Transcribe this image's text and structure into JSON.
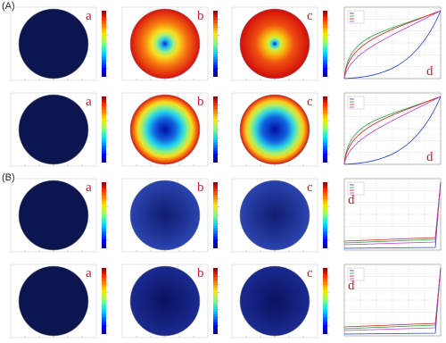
{
  "sections": [
    {
      "label": "(A)",
      "rows": [
        {
          "panels": [
            "a",
            "b",
            "c",
            "d"
          ]
        },
        {
          "panels": [
            "a",
            "b",
            "c",
            "d"
          ]
        }
      ]
    },
    {
      "label": "(B)",
      "rows": [
        {
          "panels": [
            "a",
            "b",
            "c",
            "d"
          ]
        },
        {
          "panels": [
            "a",
            "b",
            "c",
            "d"
          ]
        }
      ]
    }
  ]
}
